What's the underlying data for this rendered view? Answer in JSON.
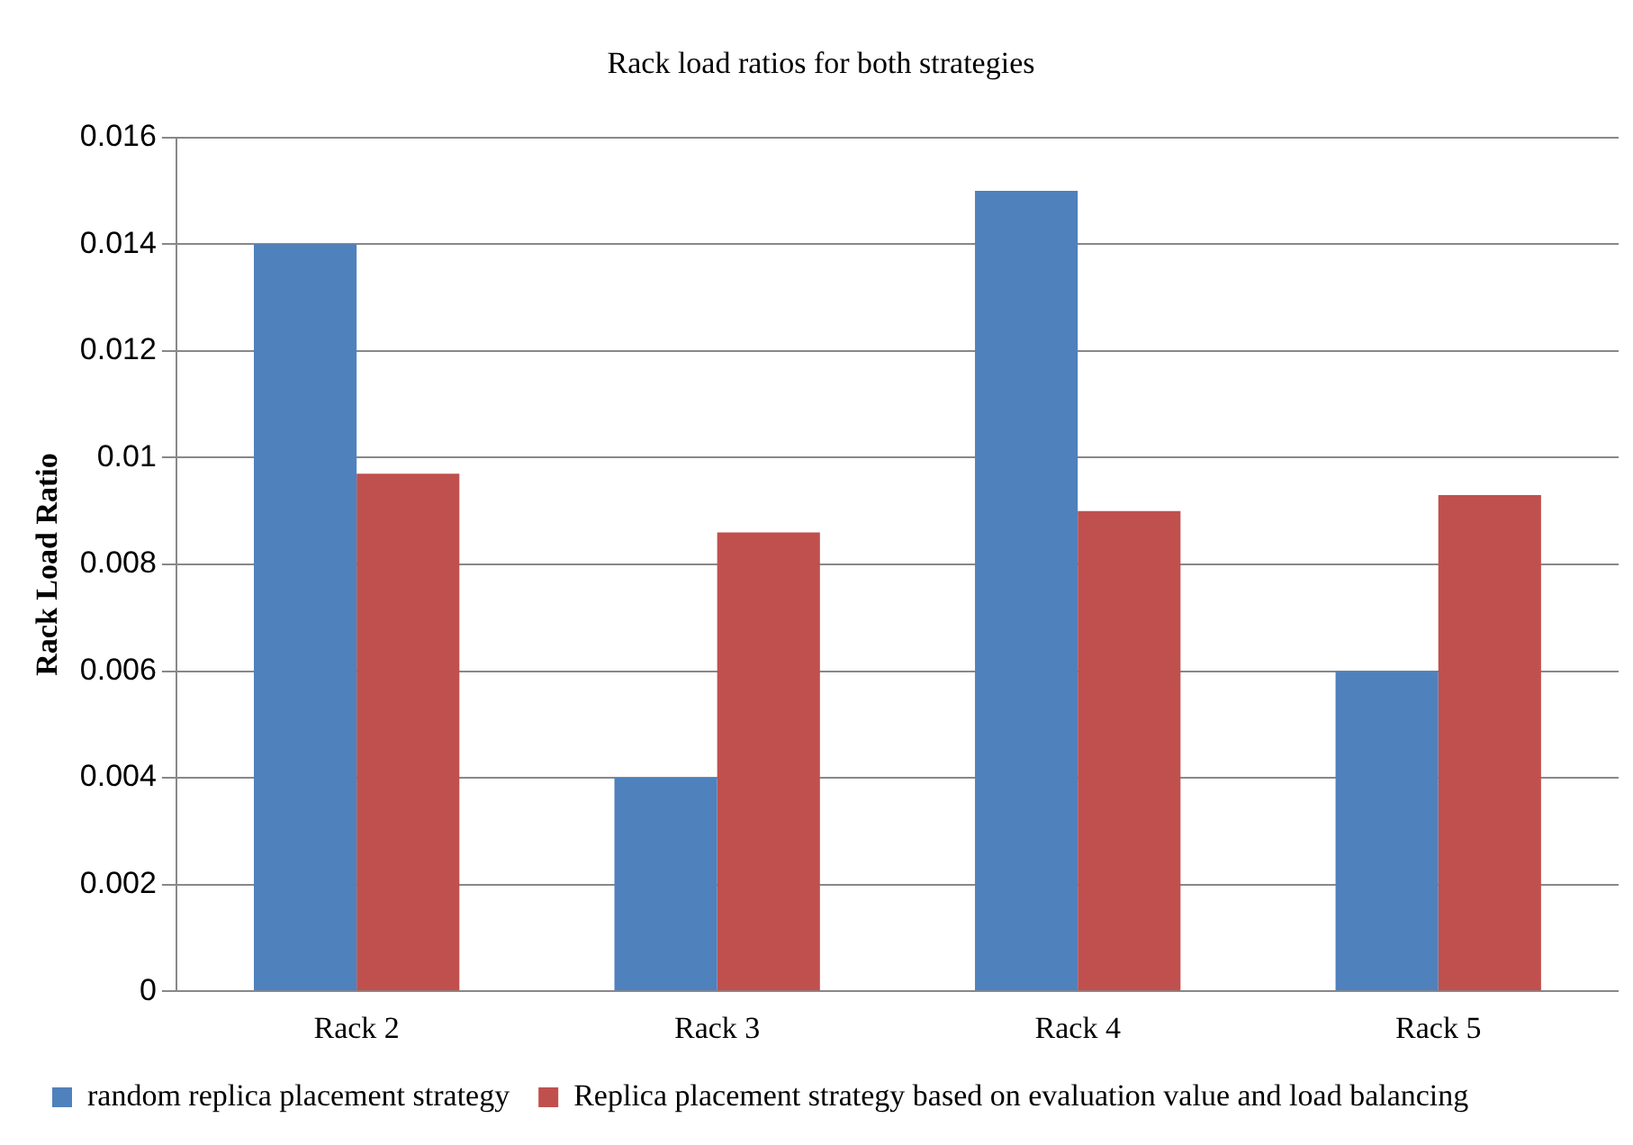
{
  "chart_data": {
    "type": "bar",
    "title": "Rack load ratios for both strategies",
    "ylabel": "Rack Load Ratio",
    "categories": [
      "Rack 2",
      "Rack 3",
      "Rack 4",
      "Rack 5"
    ],
    "series": [
      {
        "name": "random replica placement strategy",
        "color": "#4f81bd",
        "values": [
          0.014,
          0.004,
          0.015,
          0.006
        ]
      },
      {
        "name": "Replica placement strategy based on evaluation value and load balancing",
        "color": "#c0504d",
        "values": [
          0.0097,
          0.0086,
          0.009,
          0.0093
        ]
      }
    ],
    "ylim": [
      0,
      0.016
    ],
    "yticks": [
      0,
      0.002,
      0.004,
      0.006,
      0.008,
      0.01,
      0.012,
      0.014,
      0.016
    ],
    "grid": "y",
    "legend": "bottom left"
  }
}
